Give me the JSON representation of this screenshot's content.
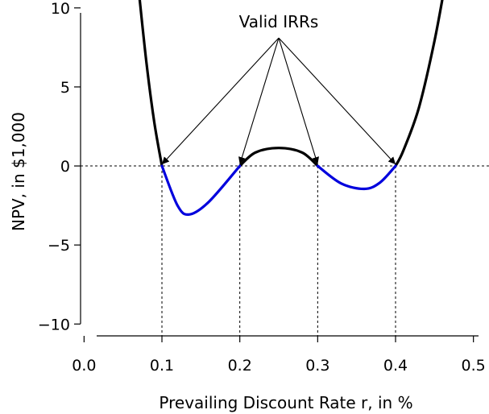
{
  "chart_data": {
    "type": "line",
    "title": "",
    "xlabel": "Prevailing Discount Rate r, in %",
    "ylabel": "NPV, in $1,000",
    "xlim": [
      -0.0045,
      0.52
    ],
    "ylim": [
      -10.75,
      10.5
    ],
    "x_ticks": [
      0.0,
      0.1,
      0.2,
      0.3,
      0.4,
      0.5
    ],
    "x_tick_labels": [
      "0.0",
      "0.1",
      "0.2",
      "0.3",
      "0.4",
      "0.5"
    ],
    "y_ticks": [
      -10,
      -5,
      0,
      5,
      10
    ],
    "y_tick_labels": [
      "−10",
      "−5",
      "0",
      "5",
      "10"
    ],
    "grid": false,
    "roots": [
      0.1,
      0.2,
      0.3,
      0.4
    ],
    "series": [
      {
        "color": "#000000",
        "segment": "NPV ≥ 0",
        "x": [
          0.07,
          0.08,
          0.09,
          0.1,
          0.2,
          0.22,
          0.25,
          0.28,
          0.3,
          0.4,
          0.41,
          0.43,
          0.45,
          0.465
        ],
        "y": [
          11.2,
          6.58,
          2.82,
          0.0,
          0.0,
          0.85,
          1.14,
          0.85,
          0.0,
          0.0,
          0.97,
          3.69,
          7.91,
          11.9
        ]
      },
      {
        "color": "#0000dd",
        "segment": "NPV < 0",
        "x": [
          0.1,
          0.12,
          0.135,
          0.16,
          0.2,
          0.3,
          0.33,
          0.36,
          0.38,
          0.4
        ],
        "y": [
          0.0,
          -2.5,
          -3.07,
          -2.28,
          0.0,
          0.0,
          -1.1,
          -1.45,
          -1.05,
          0.0
        ]
      }
    ],
    "annotation": {
      "text": "Valid IRRs",
      "source": [
        0.25,
        8.1
      ],
      "targets": [
        [
          0.1,
          0.0
        ],
        [
          0.2,
          0.0
        ],
        [
          0.3,
          0.0
        ],
        [
          0.4,
          0.0
        ]
      ]
    }
  }
}
